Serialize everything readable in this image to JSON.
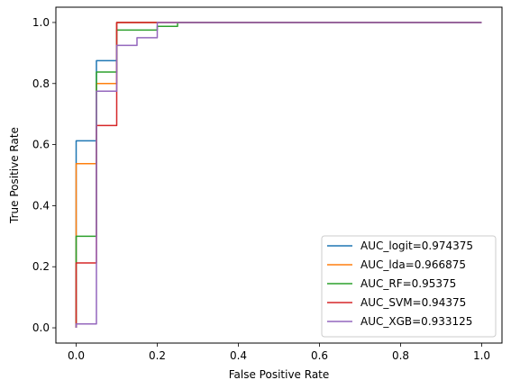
{
  "chart_data": {
    "type": "line",
    "title": "",
    "xlabel": "False Positive Rate",
    "ylabel": "True Positive Rate",
    "xlim": [
      -0.05,
      1.05
    ],
    "ylim": [
      -0.05,
      1.05
    ],
    "xticks": [
      "0.0",
      "0.2",
      "0.4",
      "0.6",
      "0.8",
      "1.0"
    ],
    "yticks": [
      "0.0",
      "0.2",
      "0.4",
      "0.6",
      "0.8",
      "1.0"
    ],
    "grid": false,
    "legend_position": "lower-right",
    "series": [
      {
        "name": "AUC_logit=0.974375",
        "color": "#1f77b4",
        "x": [
          0.0,
          0.0,
          0.0,
          0.05,
          0.05,
          0.1,
          0.1,
          1.0
        ],
        "y": [
          0.0,
          0.55,
          0.6125,
          0.6125,
          0.875,
          0.875,
          1.0,
          1.0
        ]
      },
      {
        "name": "AUC_lda=0.966875",
        "color": "#ff7f0e",
        "x": [
          0.0,
          0.0,
          0.0,
          0.05,
          0.05,
          0.1,
          0.1,
          1.0
        ],
        "y": [
          0.0,
          0.3,
          0.5375,
          0.5375,
          0.8,
          0.8,
          1.0,
          1.0
        ]
      },
      {
        "name": "AUC_RF=0.95375",
        "color": "#2ca02c",
        "x": [
          0.0,
          0.0,
          0.05,
          0.05,
          0.1,
          0.1,
          0.2,
          0.2,
          0.25,
          0.25,
          1.0
        ],
        "y": [
          0.0,
          0.3,
          0.3,
          0.8375,
          0.8375,
          0.975,
          0.975,
          0.9875,
          0.9875,
          1.0,
          1.0
        ]
      },
      {
        "name": "AUC_SVM=0.94375",
        "color": "#d62728",
        "x": [
          0.0,
          0.0,
          0.05,
          0.05,
          0.1,
          0.1,
          1.0
        ],
        "y": [
          0.0,
          0.2125,
          0.2125,
          0.6625,
          0.6625,
          1.0,
          1.0
        ]
      },
      {
        "name": "AUC_XGB=0.933125",
        "color": "#9467bd",
        "x": [
          0.0,
          0.0,
          0.05,
          0.05,
          0.1,
          0.1,
          0.15,
          0.15,
          0.2,
          0.2,
          1.0
        ],
        "y": [
          0.0,
          0.0125,
          0.0125,
          0.775,
          0.775,
          0.925,
          0.925,
          0.95,
          0.95,
          1.0,
          1.0
        ]
      }
    ]
  }
}
